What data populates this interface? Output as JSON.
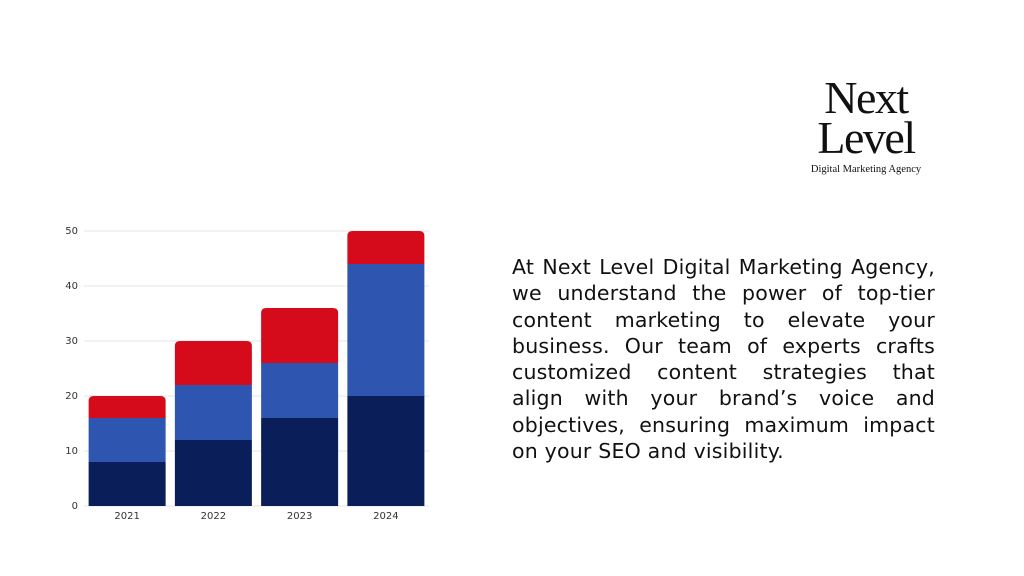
{
  "chart_data": {
    "type": "stacked-bar",
    "categories": [
      "2021",
      "2022",
      "2023",
      "2024"
    ],
    "series": [
      {
        "color": "#0a1f5a",
        "values": [
          8,
          12,
          16,
          20
        ]
      },
      {
        "color": "#2e55b0",
        "values": [
          8,
          10,
          10,
          24
        ]
      },
      {
        "color": "#d50b1c",
        "values": [
          4,
          8,
          10,
          6
        ]
      }
    ],
    "ylim": [
      0,
      50
    ],
    "yticks": [
      0,
      10,
      20,
      30,
      40,
      50
    ],
    "grid": true
  },
  "logo": {
    "line1": "Next",
    "line2": "Level",
    "tagline": "Digital Marketing Agency"
  },
  "paragraph": "At Next Level Digital Marketing Agency, we understand the power of top-tier content marketing to elevate your business. Our team of experts crafts customized content strategies that align with your brand’s voice and objectives, ensuring maximum impact on your SEO and visibility."
}
